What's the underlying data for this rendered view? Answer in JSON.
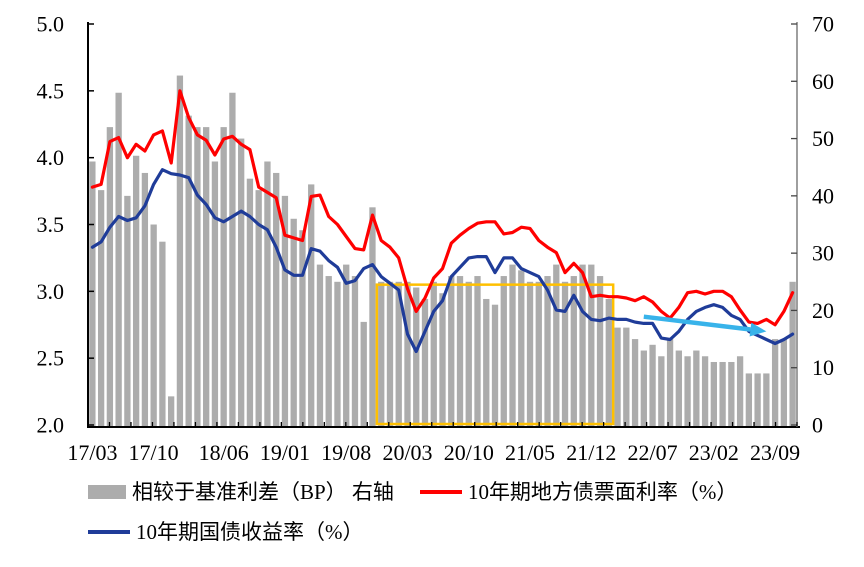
{
  "chart_data": {
    "type": "combo",
    "title": "",
    "x": [
      "17/03",
      "17/04",
      "17/05",
      "17/06",
      "17/07",
      "17/08",
      "17/09",
      "17/10",
      "17/11",
      "17/12",
      "18/01",
      "18/02",
      "18/03",
      "18/04",
      "18/05",
      "18/06",
      "18/07",
      "18/08",
      "18/09",
      "18/10",
      "18/11",
      "18/12",
      "19/01",
      "19/02",
      "19/03",
      "19/04",
      "19/05",
      "19/06",
      "19/07",
      "19/08",
      "19/09",
      "19/10",
      "19/11",
      "19/12",
      "20/01",
      "20/02",
      "20/03",
      "20/04",
      "20/05",
      "20/06",
      "20/07",
      "20/08",
      "20/09",
      "20/10",
      "20/11",
      "20/12",
      "21/01",
      "21/02",
      "21/03",
      "21/04",
      "21/05",
      "21/06",
      "21/07",
      "21/08",
      "21/09",
      "21/10",
      "21/11",
      "21/12",
      "22/01",
      "22/02",
      "22/03",
      "22/04",
      "22/05",
      "22/06",
      "22/07",
      "22/08",
      "22/09",
      "22/10",
      "22/11",
      "22/12",
      "23/01",
      "23/02",
      "23/03",
      "23/04",
      "23/05",
      "23/06",
      "23/07",
      "23/08",
      "23/09",
      "23/10",
      "23/11"
    ],
    "x_ticks": [
      {
        "index": 0,
        "label": "17/03"
      },
      {
        "index": 7,
        "label": "17/10"
      },
      {
        "index": 15,
        "label": "18/06"
      },
      {
        "index": 22,
        "label": "19/01"
      },
      {
        "index": 29,
        "label": "19/08"
      },
      {
        "index": 36,
        "label": "20/03"
      },
      {
        "index": 43,
        "label": "20/10"
      },
      {
        "index": 50,
        "label": "21/05"
      },
      {
        "index": 57,
        "label": "21/12"
      },
      {
        "index": 64,
        "label": "22/07"
      },
      {
        "index": 71,
        "label": "23/02"
      },
      {
        "index": 78,
        "label": "23/09"
      }
    ],
    "left_axis": {
      "min": 2.0,
      "max": 5.0,
      "ticks": [
        "5.0",
        "4.5",
        "4.0",
        "3.5",
        "3.0",
        "2.5",
        "2.0"
      ]
    },
    "right_axis": {
      "min": 0,
      "max": 70,
      "ticks": [
        "70",
        "60",
        "50",
        "40",
        "30",
        "20",
        "10",
        "0"
      ]
    },
    "series": [
      {
        "name": "相较于基准利差（BP） 右轴",
        "type": "bar",
        "axis": "right",
        "color": "#ACACAC",
        "values": [
          46,
          41,
          52,
          58,
          40,
          47,
          44,
          35,
          32,
          5,
          61,
          54,
          52,
          52,
          46,
          52,
          58,
          50,
          43,
          41,
          46,
          44,
          40,
          36,
          34,
          42,
          28,
          26,
          25,
          28,
          26,
          18,
          38,
          25,
          25,
          25,
          25,
          24,
          22,
          25,
          23,
          26,
          26,
          25,
          26,
          22,
          21,
          26,
          28,
          27,
          25,
          25,
          26,
          28,
          25,
          26,
          28,
          28,
          26,
          22,
          17,
          17,
          15,
          13,
          14,
          12,
          15,
          13,
          12,
          13,
          12,
          11,
          11,
          11,
          12,
          9,
          9,
          9,
          15,
          15,
          25
        ]
      },
      {
        "name": "10年期地方债票面利率（%）",
        "type": "line",
        "axis": "left",
        "color": "#FF0000",
        "values": [
          3.78,
          3.8,
          4.12,
          4.15,
          4.0,
          4.1,
          4.05,
          4.17,
          4.2,
          3.96,
          4.5,
          4.3,
          4.17,
          4.13,
          4.02,
          4.14,
          4.16,
          4.1,
          4.06,
          3.78,
          3.74,
          3.7,
          3.42,
          3.4,
          3.38,
          3.71,
          3.72,
          3.56,
          3.5,
          3.41,
          3.32,
          3.31,
          3.57,
          3.38,
          3.33,
          3.25,
          3.02,
          2.85,
          2.95,
          3.1,
          3.17,
          3.36,
          3.42,
          3.47,
          3.51,
          3.52,
          3.52,
          3.43,
          3.44,
          3.48,
          3.47,
          3.38,
          3.33,
          3.29,
          3.14,
          3.21,
          3.14,
          2.96,
          2.97,
          2.96,
          2.96,
          2.95,
          2.93,
          2.96,
          2.92,
          2.85,
          2.8,
          2.88,
          2.99,
          3.0,
          2.98,
          3.0,
          3.0,
          2.96,
          2.86,
          2.77,
          2.76,
          2.79,
          2.75,
          2.85,
          2.99
        ]
      },
      {
        "name": "10年期国债收益率（%）",
        "type": "line",
        "axis": "left",
        "color": "#1F3C99",
        "values": [
          3.33,
          3.37,
          3.48,
          3.56,
          3.53,
          3.55,
          3.64,
          3.8,
          3.91,
          3.88,
          3.87,
          3.85,
          3.72,
          3.65,
          3.55,
          3.52,
          3.56,
          3.6,
          3.56,
          3.5,
          3.46,
          3.33,
          3.16,
          3.12,
          3.12,
          3.32,
          3.3,
          3.23,
          3.18,
          3.06,
          3.08,
          3.17,
          3.2,
          3.11,
          3.06,
          3.01,
          2.68,
          2.55,
          2.7,
          2.85,
          2.93,
          3.11,
          3.18,
          3.25,
          3.26,
          3.26,
          3.14,
          3.25,
          3.25,
          3.17,
          3.14,
          3.11,
          3.01,
          2.86,
          2.85,
          2.97,
          2.85,
          2.79,
          2.78,
          2.8,
          2.79,
          2.79,
          2.77,
          2.76,
          2.76,
          2.65,
          2.64,
          2.7,
          2.79,
          2.85,
          2.88,
          2.9,
          2.88,
          2.82,
          2.79,
          2.7,
          2.67,
          2.64,
          2.61,
          2.64,
          2.68
        ]
      }
    ],
    "annotations": {
      "highlight_box": {
        "x_start": "19/12",
        "x_end": "22/02",
        "y_top": 3.05,
        "y_bottom": 2.0,
        "color": "#FFC000"
      },
      "trend_arrow": {
        "x_start": "22/06",
        "y_start": 2.81,
        "x_end": "23/08",
        "y_end": 2.7,
        "color": "#38B3EA"
      }
    },
    "grid": false,
    "legend_position": "bottom"
  },
  "legend": {
    "items": [
      {
        "label": "相较于基准利差（BP） 右轴",
        "swatch": "bar",
        "color": "#ACACAC"
      },
      {
        "label": "10年期地方债票面利率（%）",
        "swatch": "line",
        "color": "#FF0000"
      },
      {
        "label": "10年期国债收益率（%）",
        "swatch": "line",
        "color": "#1F3C99"
      }
    ]
  }
}
